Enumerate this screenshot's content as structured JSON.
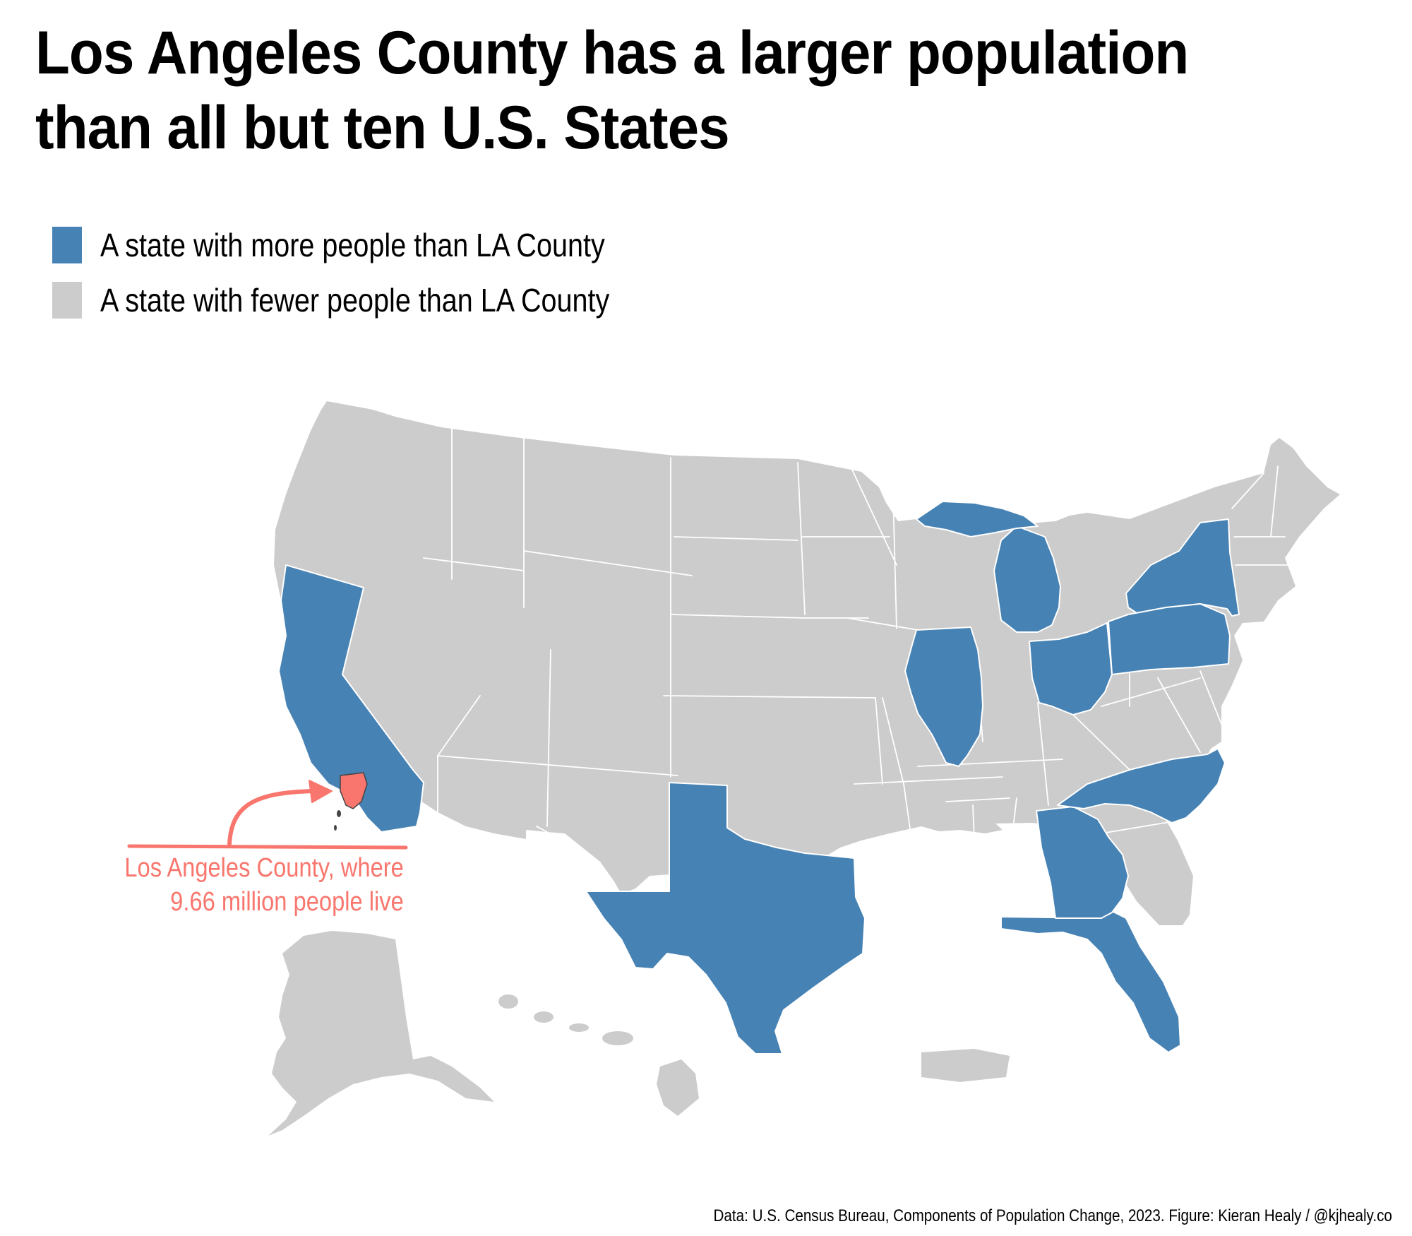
{
  "title": {
    "line1": "Los Angeles County has a larger population",
    "line2": "than all but ten U.S. States"
  },
  "legend": [
    {
      "label": "A state with more people than LA County",
      "color": "#4682b4"
    },
    {
      "label": "A state with fewer people than LA County",
      "color": "#cccccc"
    }
  ],
  "annotation": {
    "line1": "Los Angeles County, where",
    "line2": "9.66 million people live",
    "color": "#f8766d"
  },
  "colors": {
    "border": "#ffffff",
    "highlight": "#f8766d"
  },
  "map_data": {
    "states_more_populous_than_la_county": [
      "California",
      "Texas",
      "Florida",
      "New York",
      "Pennsylvania",
      "Illinois",
      "Ohio",
      "Georgia",
      "North Carolina",
      "Michigan"
    ],
    "highlighted_county": "Los Angeles County",
    "la_county_population_millions": 9.66
  },
  "caption": "Data: U.S. Census Bureau, Components of Population Change, 2023. Figure: Kieran Healy / @kjhealy.co"
}
